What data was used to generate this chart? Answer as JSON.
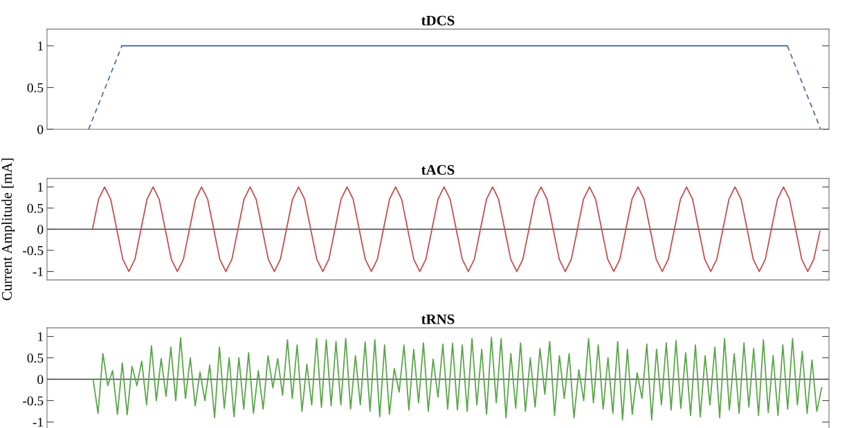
{
  "chart_data": [
    {
      "type": "line",
      "title": "tDCS",
      "ylim": [
        0,
        1.2
      ],
      "yticks": [
        0,
        0.5,
        1
      ],
      "tick_labels": "y",
      "categories": [
        null,
        null,
        null,
        null,
        null,
        null,
        null,
        null,
        null,
        null,
        null,
        null,
        null,
        null,
        null,
        null,
        null,
        null,
        null,
        null,
        null,
        null,
        null,
        null,
        null,
        null,
        null,
        null,
        null,
        null,
        null,
        null,
        null,
        null,
        null,
        null,
        null,
        null,
        null,
        null,
        null,
        null,
        null,
        null,
        null,
        null,
        null
      ],
      "series": [
        {
          "color": "#4f6f9f",
          "line_style": "dashed",
          "values": [
            null,
            null,
            0,
            0.5,
            1,
            null,
            null,
            null,
            null,
            null,
            null,
            null,
            null,
            null,
            null,
            null,
            null,
            null,
            null,
            null,
            null,
            null,
            null,
            null,
            null,
            null,
            null,
            null,
            null,
            null,
            null,
            null,
            null,
            null,
            null,
            null,
            null,
            null,
            null,
            null,
            null,
            null,
            null,
            null,
            null,
            null,
            null
          ]
        },
        {
          "color": "#4f6f9f",
          "line_style": "solid",
          "values": [
            null,
            null,
            null,
            null,
            1,
            1,
            1,
            1,
            1,
            1,
            1,
            1,
            1,
            1,
            1,
            1,
            1,
            1,
            1,
            1,
            1,
            1,
            1,
            1,
            1,
            1,
            1,
            1,
            1,
            1,
            1,
            1,
            1,
            1,
            1,
            1,
            1,
            1,
            1,
            1,
            1,
            1,
            1,
            1,
            1,
            null,
            null
          ]
        },
        {
          "color": "#4f6f9f",
          "line_style": "dashed",
          "values": [
            null,
            null,
            null,
            null,
            null,
            null,
            null,
            null,
            null,
            null,
            null,
            null,
            null,
            null,
            null,
            null,
            null,
            null,
            null,
            null,
            null,
            null,
            null,
            null,
            null,
            null,
            null,
            null,
            null,
            null,
            null,
            null,
            null,
            null,
            null,
            null,
            null,
            null,
            null,
            null,
            null,
            null,
            null,
            null,
            1,
            0.5,
            0
          ]
        }
      ]
    },
    {
      "type": "line",
      "title": "tACS",
      "ylabel": "Current Amplitude [mA]",
      "ylim": [
        -1.2,
        1.2
      ],
      "yticks": [
        -1,
        -0.5,
        0,
        0.5,
        1
      ],
      "tick_labels": "y",
      "ref_lines": [
        {
          "axis": "y",
          "value": 0,
          "color": "#404040"
        }
      ],
      "categories": [
        null,
        null,
        null,
        null,
        null,
        null,
        null,
        null,
        null,
        null,
        null,
        null,
        null,
        null,
        null,
        null,
        null,
        null,
        null,
        null,
        null,
        null,
        null,
        null,
        null,
        null,
        null,
        null,
        null,
        null,
        null,
        null,
        null,
        null,
        null,
        null,
        null,
        null,
        null,
        null,
        null,
        null,
        null,
        null,
        null,
        null,
        null,
        null,
        null,
        null,
        null,
        null,
        null,
        null,
        null,
        null,
        null,
        null,
        null,
        null,
        null,
        null,
        null,
        null,
        null,
        null,
        null,
        null,
        null,
        null,
        null,
        null,
        null,
        null,
        null,
        null,
        null,
        null,
        null,
        null,
        null,
        null,
        null,
        null,
        null,
        null,
        null,
        null,
        null,
        null,
        null,
        null,
        null,
        null,
        null,
        null,
        null,
        null,
        null,
        null,
        null,
        null,
        null,
        null,
        null,
        null,
        null,
        null,
        null,
        null,
        null,
        null,
        null,
        null,
        null,
        null,
        null,
        null,
        null,
        null,
        null,
        null,
        null,
        null,
        null,
        null,
        null,
        null,
        null
      ],
      "series": [
        {
          "color": "#c0504d",
          "values": [
            null,
            null,
            null,
            null,
            null,
            null,
            null,
            0,
            0.71,
            1,
            0.71,
            0,
            -0.71,
            -1,
            -0.71,
            0,
            0.71,
            1,
            0.71,
            0,
            -0.71,
            -1,
            -0.71,
            0,
            0.71,
            1,
            0.71,
            0,
            -0.71,
            -1,
            -0.71,
            0,
            0.71,
            1,
            0.71,
            0,
            -0.71,
            -1,
            -0.71,
            0,
            0.71,
            1,
            0.71,
            0,
            -0.71,
            -1,
            -0.71,
            0,
            0.71,
            1,
            0.71,
            0,
            -0.71,
            -1,
            -0.71,
            0,
            0.71,
            1,
            0.71,
            0,
            -0.71,
            -1,
            -0.71,
            0,
            0.71,
            1,
            0.71,
            0,
            -0.71,
            -1,
            -0.71,
            0,
            0.71,
            1,
            0.71,
            0,
            -0.71,
            -1,
            -0.71,
            0,
            0.71,
            1,
            0.71,
            0,
            -0.71,
            -1,
            -0.71,
            0,
            0.71,
            1,
            0.71,
            0,
            -0.71,
            -1,
            -0.71,
            0,
            0.71,
            1,
            0.71,
            0,
            -0.71,
            -1,
            -0.71,
            0,
            0.71,
            1,
            0.71,
            0,
            -0.71,
            -1,
            -0.71,
            0,
            0.71,
            1,
            0.71,
            0,
            -0.71,
            -1,
            -0.71,
            0,
            0.71,
            1,
            0.71,
            0,
            -0.71,
            -1,
            -0.71,
            -0.05,
            null
          ]
        }
      ]
    },
    {
      "type": "line",
      "title": "tRNS",
      "ylim": [
        -1.2,
        1.2
      ],
      "yticks": [
        -1,
        -0.5,
        0,
        0.5,
        1
      ],
      "tick_labels": "y",
      "ref_lines": [
        {
          "axis": "y",
          "value": 0,
          "color": "#404040"
        }
      ],
      "categories": [
        null,
        null,
        null,
        null,
        null,
        null,
        null,
        null,
        null,
        null,
        null,
        null,
        null,
        null,
        null,
        null,
        null,
        null,
        null,
        null,
        null,
        null,
        null,
        null,
        null,
        null,
        null,
        null,
        null,
        null,
        null,
        null,
        null,
        null,
        null,
        null,
        null,
        null,
        null,
        null,
        null,
        null,
        null,
        null,
        null,
        null,
        null,
        null,
        null,
        null,
        null,
        null,
        null,
        null,
        null,
        null,
        null,
        null,
        null,
        null,
        null,
        null,
        null,
        null,
        null,
        null,
        null,
        null,
        null,
        null,
        null,
        null,
        null,
        null,
        null,
        null,
        null,
        null,
        null,
        null,
        null,
        null,
        null,
        null,
        null,
        null,
        null,
        null,
        null,
        null,
        null,
        null,
        null,
        null,
        null,
        null,
        null,
        null,
        null,
        null,
        null,
        null,
        null,
        null,
        null,
        null,
        null,
        null,
        null,
        null,
        null,
        null,
        null,
        null,
        null,
        null,
        null,
        null,
        null,
        null,
        null,
        null,
        null,
        null,
        null,
        null,
        null,
        null,
        null,
        null,
        null,
        null,
        null,
        null,
        null,
        null,
        null,
        null,
        null,
        null,
        null,
        null,
        null,
        null,
        null,
        null,
        null,
        null,
        null,
        null,
        null,
        null,
        null,
        null,
        null,
        null,
        null,
        null,
        null,
        null,
        null
      ],
      "series": [
        {
          "color": "#5aa64a",
          "values": [
            null,
            null,
            null,
            null,
            null,
            null,
            null,
            null,
            null,
            0,
            -0.8,
            0.6,
            -0.15,
            0.2,
            -0.82,
            0.38,
            -0.83,
            0.3,
            -0.15,
            0.42,
            -0.6,
            0.78,
            -0.5,
            0.48,
            -0.4,
            0.75,
            -0.5,
            0.97,
            -0.45,
            0.5,
            -0.62,
            0.17,
            -0.5,
            0.33,
            -0.9,
            0.75,
            -0.68,
            0.5,
            -0.88,
            0.5,
            -0.7,
            0.62,
            -0.8,
            0.2,
            -0.7,
            0.55,
            -0.2,
            0.48,
            -0.38,
            0.92,
            -0.45,
            0.8,
            -0.75,
            0.35,
            -0.6,
            0.95,
            -0.66,
            0.92,
            -0.62,
            0.88,
            -0.6,
            0.95,
            -0.7,
            0.55,
            -0.6,
            0.87,
            -0.75,
            0.92,
            -0.88,
            0.8,
            -0.82,
            0.25,
            -0.3,
            0.8,
            -0.72,
            0.7,
            -0.55,
            0.85,
            -0.75,
            0.47,
            -0.42,
            0.82,
            -0.7,
            0.84,
            -0.72,
            0.8,
            -0.75,
            0.95,
            -0.6,
            0.7,
            -0.82,
            0.98,
            -0.55,
            0.95,
            -0.9,
            0.6,
            -0.68,
            0.85,
            -0.75,
            0.5,
            -0.65,
            0.72,
            -0.35,
            0.88,
            -0.85,
            0.55,
            -0.45,
            0.6,
            -0.9,
            0.22,
            -0.5,
            0.95,
            -0.55,
            0.8,
            -0.7,
            0.5,
            -0.8,
            0.88,
            -0.95,
            0.7,
            -0.82,
            0.15,
            -0.45,
            0.82,
            -0.95,
            0.7,
            -0.6,
            0.85,
            -0.72,
            0.9,
            -0.68,
            0.62,
            -0.85,
            0.8,
            -0.88,
            0.55,
            -0.6,
            0.75,
            -0.9,
            0.95,
            -0.72,
            0.6,
            -0.8,
            0.85,
            -0.65,
            0.72,
            -0.85,
            0.92,
            -0.78,
            0.55,
            -0.85,
            0.8,
            -0.7,
            0.95,
            -0.6,
            0.65,
            -0.8,
            0.45,
            -0.75,
            -0.2,
            null
          ]
        }
      ]
    }
  ]
}
